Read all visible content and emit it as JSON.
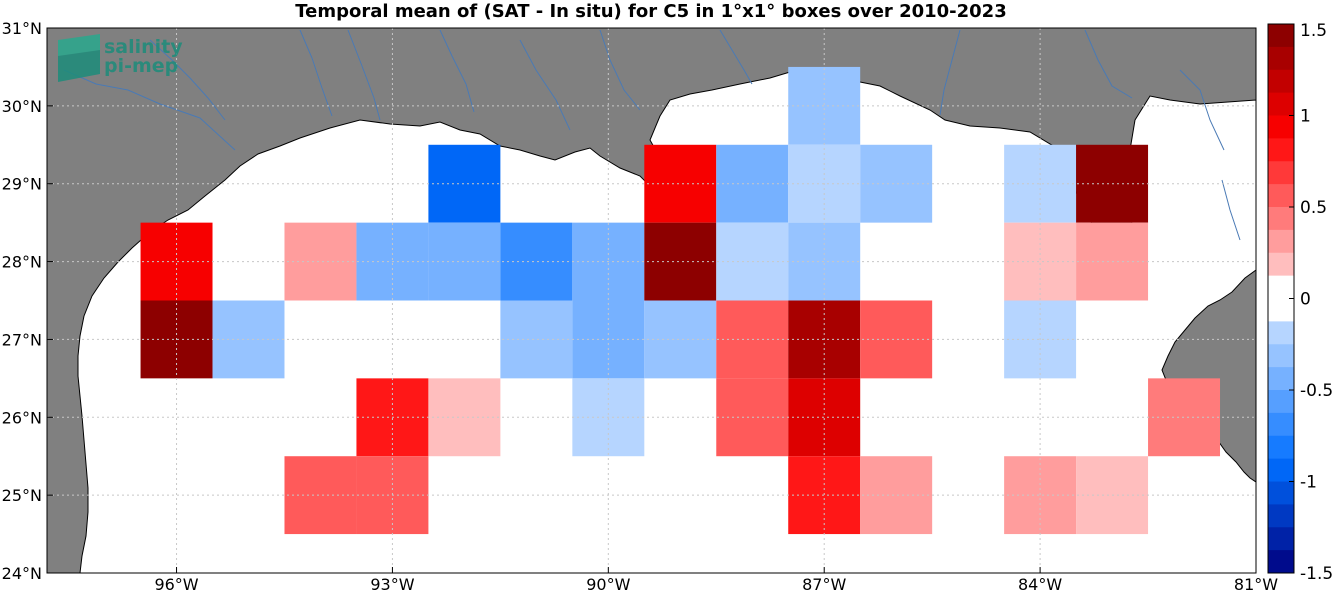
{
  "chart_data": {
    "type": "heatmap",
    "title": "Temporal mean of (SAT - In situ) for C5 in 1°x1° boxes over 2010-2023",
    "xlim": [
      -97.8,
      -81
    ],
    "ylim": [
      24,
      31
    ],
    "grid": true,
    "x_ticks": [
      -96,
      -93,
      -90,
      -87,
      -84,
      -81
    ],
    "x_tick_labels": [
      "96°W",
      "93°W",
      "90°W",
      "87°W",
      "84°W",
      "81°W"
    ],
    "y_ticks": [
      24,
      25,
      26,
      27,
      28,
      29,
      30,
      31
    ],
    "y_tick_labels": [
      "24°N",
      "25°N",
      "26°N",
      "27°N",
      "28°N",
      "29°N",
      "30°N",
      "31°N"
    ],
    "colorbar": {
      "range": [
        -1.5,
        1.5
      ],
      "levels": 24,
      "ticks": [
        1.5,
        1,
        0.5,
        0,
        -0.5,
        -1,
        -1.5
      ],
      "tick_labels": [
        "1.5",
        "1",
        "0.5",
        "0",
        "-0.5",
        "-1",
        "-1.5"
      ],
      "zero_band": [
        -0.125,
        0.125
      ]
    },
    "cells": [
      {
        "lon": -96,
        "lat": 28,
        "value": 0.9
      },
      {
        "lon": -96,
        "lat": 27,
        "value": 1.4
      },
      {
        "lon": -95,
        "lat": 27,
        "value": -0.3
      },
      {
        "lon": -94,
        "lat": 28,
        "value": 0.3
      },
      {
        "lon": -94,
        "lat": 25,
        "value": 0.6
      },
      {
        "lon": -93,
        "lat": 28,
        "value": -0.4
      },
      {
        "lon": -93,
        "lat": 26,
        "value": 0.75
      },
      {
        "lon": -93,
        "lat": 25,
        "value": 0.5
      },
      {
        "lon": -92,
        "lat": 29,
        "value": -0.9
      },
      {
        "lon": -92,
        "lat": 28,
        "value": -0.4
      },
      {
        "lon": -92,
        "lat": 26,
        "value": 0.2
      },
      {
        "lon": -91,
        "lat": 28,
        "value": -0.7
      },
      {
        "lon": -91,
        "lat": 27,
        "value": -0.3
      },
      {
        "lon": -90,
        "lat": 28,
        "value": -0.5
      },
      {
        "lon": -90,
        "lat": 27,
        "value": -0.5
      },
      {
        "lon": -90,
        "lat": 26,
        "value": -0.2
      },
      {
        "lon": -89,
        "lat": 29,
        "value": 0.9
      },
      {
        "lon": -89,
        "lat": 28,
        "value": 1.4
      },
      {
        "lon": -89,
        "lat": 27,
        "value": -0.35
      },
      {
        "lon": -88,
        "lat": 29,
        "value": -0.4
      },
      {
        "lon": -88,
        "lat": 28,
        "value": -0.2
      },
      {
        "lon": -88,
        "lat": 27,
        "value": 0.5
      },
      {
        "lon": -88,
        "lat": 26,
        "value": 0.6
      },
      {
        "lon": -87,
        "lat": 30,
        "value": -0.3
      },
      {
        "lon": -87,
        "lat": 29,
        "value": -0.2
      },
      {
        "lon": -87,
        "lat": 28,
        "value": -0.3
      },
      {
        "lon": -87,
        "lat": 27,
        "value": 1.3
      },
      {
        "lon": -87,
        "lat": 26,
        "value": 1.0
      },
      {
        "lon": -87,
        "lat": 25,
        "value": 0.8
      },
      {
        "lon": -86,
        "lat": 29,
        "value": -0.3
      },
      {
        "lon": -86,
        "lat": 27,
        "value": 0.5
      },
      {
        "lon": -86,
        "lat": 25,
        "value": 0.35
      },
      {
        "lon": -84,
        "lat": 29,
        "value": -0.2
      },
      {
        "lon": -84,
        "lat": 28,
        "value": 0.2
      },
      {
        "lon": -84,
        "lat": 27,
        "value": -0.2
      },
      {
        "lon": -84,
        "lat": 25,
        "value": 0.35
      },
      {
        "lon": -83,
        "lat": 29,
        "value": 1.45
      },
      {
        "lon": -83,
        "lat": 28,
        "value": 0.35
      },
      {
        "lon": -83,
        "lat": 25,
        "value": 0.2
      },
      {
        "lon": -82,
        "lat": 26,
        "value": 0.45
      }
    ]
  },
  "logo": {
    "line1": "salinity",
    "line2": "pi-mep"
  },
  "colors": {
    "land": "#808080",
    "water": "#ffffff",
    "rivers": "#4a7ab5",
    "grid": "#c8c8c8",
    "logo": "#1d8c7b",
    "cmap_red_end": "#800000",
    "cmap_blue_end": "#00007f"
  }
}
